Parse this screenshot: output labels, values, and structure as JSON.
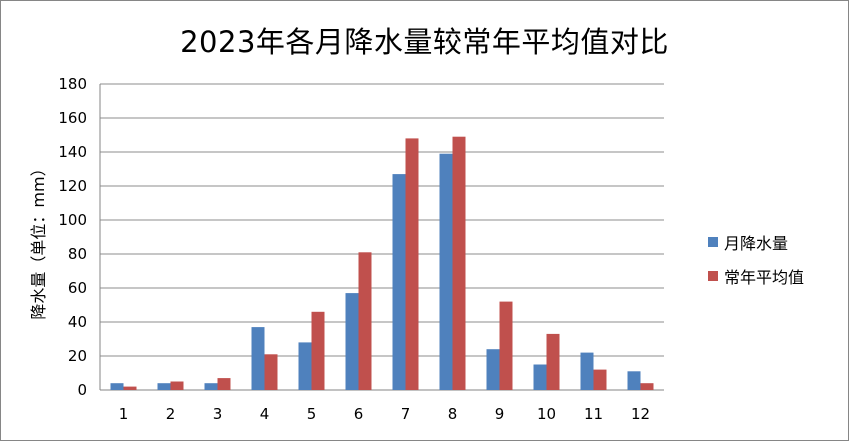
{
  "chart_data": {
    "type": "bar",
    "title": "2023年各月降水量较常年平均值对比",
    "xlabel": "",
    "ylabel": "降水量（单位：mm）",
    "ylim": [
      0,
      180
    ],
    "yticks": [
      0,
      20,
      40,
      60,
      80,
      100,
      120,
      140,
      160,
      180
    ],
    "grid": true,
    "legend": "right",
    "categories": [
      "1",
      "2",
      "3",
      "4",
      "5",
      "6",
      "7",
      "8",
      "9",
      "10",
      "11",
      "12"
    ],
    "series": [
      {
        "name": "月降水量",
        "color": "#4F81BD",
        "values": [
          4,
          4,
          4,
          37,
          28,
          57,
          127,
          139,
          24,
          15,
          22,
          11
        ]
      },
      {
        "name": "常年平均值",
        "color": "#C0504D",
        "values": [
          2,
          5,
          7,
          21,
          46,
          81,
          148,
          149,
          52,
          33,
          12,
          4
        ]
      }
    ]
  }
}
